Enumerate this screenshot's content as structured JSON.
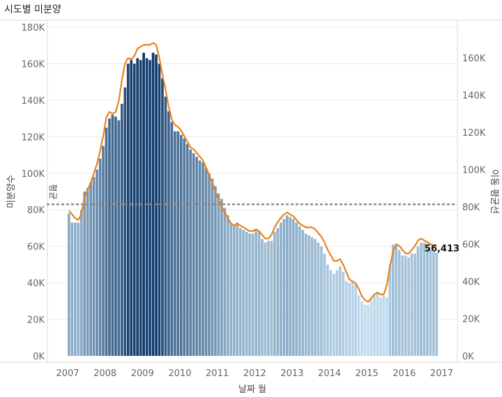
{
  "chart_data": {
    "type": "bar",
    "title": "시도별 미분양",
    "xlabel": "날짜 월",
    "ylabel": "미분양수",
    "y2label": "이동 평균선",
    "ylim": [
      0,
      180000
    ],
    "y2lim": [
      0,
      170000
    ],
    "y_ticks": [
      "0K",
      "20K",
      "40K",
      "60K",
      "80K",
      "100K",
      "120K",
      "140K",
      "160K",
      "180K"
    ],
    "y2_ticks": [
      "0K",
      "20K",
      "40K",
      "60K",
      "80K",
      "100K",
      "120K",
      "140K",
      "160K"
    ],
    "x_ticks": [
      "2007",
      "2008",
      "2009",
      "2010",
      "2011",
      "2012",
      "2013",
      "2014",
      "2015",
      "2016",
      "2017"
    ],
    "reference_line": {
      "label": "평균",
      "value": 83000
    },
    "last_value_label": "56,413",
    "colors": {
      "bar_low": "#c0dcee",
      "bar_high": "#0e3a6a",
      "line": "#e8821e",
      "reference": "#888888"
    },
    "series": [
      {
        "type": "bar",
        "start": "2007-01",
        "values": [
          78000,
          73000,
          73000,
          73000,
          80000,
          90000,
          92000,
          95000,
          98000,
          102000,
          108000,
          115000,
          125000,
          130000,
          132000,
          131000,
          129000,
          138000,
          147000,
          160000,
          162000,
          160000,
          163000,
          162000,
          166000,
          163000,
          162000,
          166000,
          165000,
          160000,
          152000,
          142000,
          134000,
          128000,
          123000,
          123000,
          121000,
          119000,
          116000,
          113000,
          111000,
          109000,
          107000,
          106000,
          103000,
          100000,
          97000,
          93000,
          89000,
          86000,
          81000,
          77000,
          73000,
          72000,
          73000,
          70000,
          69000,
          68000,
          67000,
          67000,
          69000,
          68000,
          64000,
          62000,
          63000,
          63000,
          68000,
          70000,
          73000,
          75000,
          77000,
          76000,
          75000,
          73000,
          71000,
          69000,
          67000,
          66000,
          65000,
          64000,
          62000,
          60000,
          56000,
          50000,
          47000,
          45000,
          47000,
          49000,
          46000,
          41000,
          40000,
          41000,
          39000,
          33000,
          30000,
          28000,
          28000,
          31000,
          33000,
          35000,
          32000,
          33000,
          32000,
          50000,
          61000,
          61000,
          58000,
          55000,
          55000,
          54000,
          56000,
          56000,
          60000,
          62000,
          62000,
          59000,
          58000,
          57000,
          56413
        ]
      },
      {
        "type": "line",
        "name": "이동 평균선",
        "start": "2007-01",
        "values": [
          78000,
          76000,
          74000,
          73000,
          76000,
          85000,
          89000,
          93000,
          98000,
          103000,
          110000,
          118000,
          128000,
          131000,
          130000,
          131000,
          137000,
          148000,
          157000,
          160000,
          159000,
          161000,
          165000,
          166000,
          167000,
          167000,
          167000,
          168000,
          167000,
          160000,
          151000,
          143000,
          134000,
          127000,
          124000,
          123000,
          121000,
          118000,
          115000,
          112000,
          111000,
          109000,
          107000,
          105000,
          101000,
          97000,
          93000,
          88000,
          84000,
          80000,
          77000,
          74000,
          71000,
          70000,
          71000,
          70000,
          69000,
          68000,
          67000,
          67000,
          68000,
          67000,
          65000,
          63000,
          63000,
          65000,
          69000,
          72000,
          74000,
          76000,
          77000,
          76000,
          75000,
          73000,
          71000,
          70000,
          69000,
          69000,
          69000,
          68000,
          66000,
          64000,
          61000,
          57000,
          54000,
          51000,
          51000,
          52000,
          49000,
          45000,
          41000,
          40000,
          39000,
          36000,
          32000,
          30000,
          29000,
          31000,
          33000,
          34000,
          33000,
          33000,
          38000,
          48000,
          56000,
          60000,
          59000,
          57000,
          55000,
          55000,
          57000,
          59000,
          62000,
          63000,
          62000,
          61000,
          60000,
          59000,
          59000
        ]
      }
    ]
  }
}
